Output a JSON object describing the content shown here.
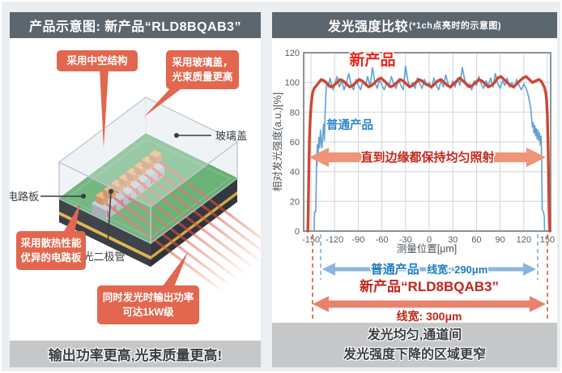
{
  "left_panel": {
    "header": "产品示意图: 新产品“RLD8BQAB3”",
    "callouts": {
      "hollow": "采用中空结构",
      "glass_line1": "采用玻璃盖，",
      "glass_line2": "光束质量更高",
      "heat_line1": "采用散热性能",
      "heat_line2": "优异的电路板",
      "power_line1": "同时发光时输出功率",
      "power_line2": "可达1kW级"
    },
    "labels": {
      "glass_cover": "玻璃盖",
      "circuit_board": "电路板",
      "laser_diode": "激光二极管"
    },
    "footer": "输出功率更高,光束质量更高!"
  },
  "right_panel": {
    "header_title": "发光强度比较",
    "header_note": "(*1ch点亮时的示意图)",
    "footer_line1": "发光均匀,通道间",
    "footer_line2": "发光强度下降的区域更窄"
  },
  "colors": {
    "header_bar": "#5c666e",
    "callout_red": "#e2674e",
    "new_product_line": "#cc4732",
    "ordinary_product_line": "#64a0d2",
    "center_arrow": "#ee9478",
    "blue_arrow": "#8ab6de",
    "red_arrow": "#e8826c",
    "footer_bar": "#c5c7c8"
  },
  "chart_data": {
    "type": "line",
    "title": "发光强度比较(*1ch点亮时的示意图)",
    "xlabel": "测量位置[μm]",
    "ylabel": "相对发光强度(a.u.)[%]",
    "xlim": [
      -160,
      155
    ],
    "ylim": [
      0,
      120
    ],
    "x_ticks": [
      -150,
      -120,
      -90,
      -60,
      -30,
      0,
      30,
      60,
      90,
      120,
      150
    ],
    "y_ticks": [
      0,
      20,
      40,
      60,
      80,
      100,
      120
    ],
    "grid": true,
    "legend_position": "in-plot text labels",
    "series": [
      {
        "name": "普通产品",
        "color": "#64a0d2",
        "points": [
          [
            -146,
            0
          ],
          [
            -145.5,
            13
          ],
          [
            -144,
            13
          ],
          [
            -143.5,
            26
          ],
          [
            -143,
            50
          ],
          [
            -142.5,
            44
          ],
          [
            -142,
            58
          ],
          [
            -141,
            52
          ],
          [
            -140,
            63
          ],
          [
            -139,
            56
          ],
          [
            -138,
            68
          ],
          [
            -137,
            60
          ],
          [
            -136,
            56
          ],
          [
            -135,
            65
          ],
          [
            -134,
            72
          ],
          [
            -133,
            61
          ],
          [
            -132,
            82
          ],
          [
            -131,
            93
          ],
          [
            -130,
            100
          ],
          [
            -128,
            97
          ],
          [
            -126,
            103
          ],
          [
            -124,
            99
          ],
          [
            -122,
            95
          ],
          [
            -120,
            98
          ],
          [
            -117,
            104
          ],
          [
            -114,
            97
          ],
          [
            -111,
            101
          ],
          [
            -108,
            95
          ],
          [
            -105,
            100
          ],
          [
            -102,
            106
          ],
          [
            -99,
            98
          ],
          [
            -96,
            95
          ],
          [
            -93,
            102
          ],
          [
            -90,
            98
          ],
          [
            -87,
            95
          ],
          [
            -84,
            101
          ],
          [
            -81,
            98
          ],
          [
            -78,
            104
          ],
          [
            -75,
            97
          ],
          [
            -72,
            110
          ],
          [
            -69,
            100
          ],
          [
            -66,
            96
          ],
          [
            -63,
            102
          ],
          [
            -60,
            98
          ],
          [
            -57,
            95
          ],
          [
            -54,
            100
          ],
          [
            -51,
            97
          ],
          [
            -48,
            104
          ],
          [
            -45,
            99
          ],
          [
            -42,
            96
          ],
          [
            -39,
            102
          ],
          [
            -36,
            98
          ],
          [
            -33,
            95
          ],
          [
            -30,
            111
          ],
          [
            -27,
            101
          ],
          [
            -24,
            97
          ],
          [
            -21,
            100
          ],
          [
            -18,
            96
          ],
          [
            -15,
            103
          ],
          [
            -12,
            99
          ],
          [
            -9,
            96
          ],
          [
            -6,
            102
          ],
          [
            -3,
            98
          ],
          [
            0,
            100
          ],
          [
            3,
            96
          ],
          [
            6,
            103
          ],
          [
            9,
            98
          ],
          [
            12,
            95
          ],
          [
            15,
            101
          ],
          [
            18,
            97
          ],
          [
            21,
            105
          ],
          [
            24,
            99
          ],
          [
            27,
            96
          ],
          [
            30,
            101
          ],
          [
            33,
            97
          ],
          [
            36,
            103
          ],
          [
            39,
            98
          ],
          [
            42,
            110
          ],
          [
            45,
            102
          ],
          [
            48,
            97
          ],
          [
            51,
            99
          ],
          [
            54,
            95
          ],
          [
            57,
            101
          ],
          [
            60,
            98
          ],
          [
            63,
            104
          ],
          [
            66,
            99
          ],
          [
            69,
            96
          ],
          [
            72,
            101
          ],
          [
            75,
            98
          ],
          [
            78,
            103
          ],
          [
            81,
            97
          ],
          [
            84,
            106
          ],
          [
            87,
            99
          ],
          [
            90,
            96
          ],
          [
            93,
            101
          ],
          [
            96,
            98
          ],
          [
            99,
            103
          ],
          [
            102,
            97
          ],
          [
            105,
            100
          ],
          [
            108,
            96
          ],
          [
            111,
            102
          ],
          [
            114,
            98
          ],
          [
            117,
            95
          ],
          [
            120,
            99
          ],
          [
            123,
            96
          ],
          [
            125,
            93
          ],
          [
            127,
            88
          ],
          [
            129,
            82
          ],
          [
            130,
            76
          ],
          [
            131,
            70
          ],
          [
            132,
            73
          ],
          [
            133,
            66
          ],
          [
            134,
            71
          ],
          [
            135,
            64
          ],
          [
            136,
            69
          ],
          [
            137,
            62
          ],
          [
            138,
            68
          ],
          [
            139,
            61
          ],
          [
            140,
            66
          ],
          [
            141,
            58
          ],
          [
            142,
            64
          ],
          [
            142.5,
            52
          ],
          [
            143,
            36
          ],
          [
            143.5,
            14
          ],
          [
            145,
            13
          ],
          [
            146,
            10
          ],
          [
            146.5,
            0
          ]
        ]
      },
      {
        "name": "新产品",
        "color": "#cc4732",
        "points": [
          [
            -154,
            0
          ],
          [
            -153.5,
            12
          ],
          [
            -153,
            30
          ],
          [
            -152.5,
            48
          ],
          [
            -152,
            62
          ],
          [
            -151,
            75
          ],
          [
            -150,
            84
          ],
          [
            -149,
            89
          ],
          [
            -148,
            93
          ],
          [
            -146,
            96
          ],
          [
            -143,
            98
          ],
          [
            -140,
            100
          ],
          [
            -137,
            102
          ],
          [
            -133,
            101
          ],
          [
            -129,
            99
          ],
          [
            -125,
            97
          ],
          [
            -121,
            98
          ],
          [
            -117,
            100
          ],
          [
            -113,
            102
          ],
          [
            -109,
            101
          ],
          [
            -105,
            99
          ],
          [
            -101,
            97
          ],
          [
            -97,
            98
          ],
          [
            -93,
            100
          ],
          [
            -89,
            102
          ],
          [
            -85,
            101
          ],
          [
            -81,
            99
          ],
          [
            -77,
            97
          ],
          [
            -73,
            98
          ],
          [
            -69,
            100
          ],
          [
            -65,
            102
          ],
          [
            -61,
            103
          ],
          [
            -57,
            101
          ],
          [
            -53,
            99
          ],
          [
            -49,
            97
          ],
          [
            -45,
            98
          ],
          [
            -41,
            100
          ],
          [
            -37,
            102
          ],
          [
            -33,
            101
          ],
          [
            -29,
            99
          ],
          [
            -25,
            97
          ],
          [
            -21,
            98
          ],
          [
            -17,
            100
          ],
          [
            -13,
            102
          ],
          [
            -9,
            101
          ],
          [
            -5,
            99
          ],
          [
            -1,
            98
          ],
          [
            3,
            97
          ],
          [
            7,
            99
          ],
          [
            11,
            101
          ],
          [
            15,
            102
          ],
          [
            19,
            100
          ],
          [
            23,
            98
          ],
          [
            27,
            97
          ],
          [
            31,
            99
          ],
          [
            35,
            101
          ],
          [
            39,
            103
          ],
          [
            43,
            101
          ],
          [
            47,
            99
          ],
          [
            51,
            97
          ],
          [
            55,
            98
          ],
          [
            59,
            100
          ],
          [
            63,
            102
          ],
          [
            67,
            101
          ],
          [
            71,
            99
          ],
          [
            75,
            97
          ],
          [
            79,
            98
          ],
          [
            83,
            100
          ],
          [
            87,
            103
          ],
          [
            91,
            104
          ],
          [
            95,
            102
          ],
          [
            99,
            100
          ],
          [
            103,
            98
          ],
          [
            107,
            97
          ],
          [
            111,
            99
          ],
          [
            115,
            101
          ],
          [
            119,
            103
          ],
          [
            123,
            104
          ],
          [
            127,
            102
          ],
          [
            131,
            100
          ],
          [
            135,
            101
          ],
          [
            139,
            102
          ],
          [
            142,
            101
          ],
          [
            144,
            99
          ],
          [
            146,
            97
          ],
          [
            148,
            93
          ],
          [
            149,
            88
          ],
          [
            150,
            78
          ],
          [
            151,
            55
          ],
          [
            151.8,
            30
          ],
          [
            152.4,
            12
          ],
          [
            153,
            0
          ]
        ]
      }
    ],
    "annotations": {
      "center_arrow_text": "直到边缘都保持均匀照射",
      "blue_arrow_label": "普通产品",
      "blue_arrow_value": "线宽: 290μm",
      "red_arrow_label": "新产品“RLD8BQAB3”",
      "red_arrow_value": "线宽: 300μm"
    }
  }
}
